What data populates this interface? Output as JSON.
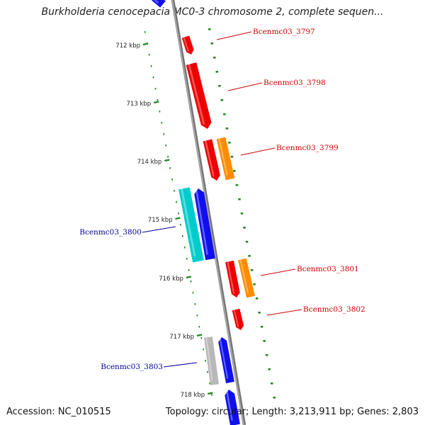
{
  "title": "Burkholderia cenocepacia MC0-3 chromosome 2, complete sequen...",
  "footer": {
    "accession": "Accession: NC_010515",
    "topology": "Topology: circular; Length: 3,213,911 bp; Genes: 2,803"
  },
  "colors": {
    "forward_gene": "#ee0000",
    "reverse_gene": "#1010ee",
    "rna_gene": "#00cccc",
    "orange_gene": "#ff8c00",
    "pseudo_gene": "#b8b8b8",
    "backbone": "#888888",
    "tick": "#228822",
    "forward_label": "#cc0000",
    "reverse_label": "#000099"
  },
  "ticks": [
    {
      "label": "712 kbp"
    },
    {
      "label": "713 kbp"
    },
    {
      "label": "714 kbp"
    },
    {
      "label": "715 kbp"
    },
    {
      "label": "716 kbp"
    },
    {
      "label": "717 kbp"
    },
    {
      "label": "718 kbp"
    }
  ],
  "gene_labels": [
    {
      "text": "Bcenmc03_3797",
      "strand": "forward"
    },
    {
      "text": "Bcenmc03_3798",
      "strand": "forward"
    },
    {
      "text": "Bcenmc03_3799",
      "strand": "forward"
    },
    {
      "text": "Bcenmc03_3800",
      "strand": "reverse"
    },
    {
      "text": "Bcenmc03_3801",
      "strand": "forward"
    },
    {
      "text": "Bcenmc03_3802",
      "strand": "forward"
    },
    {
      "text": "Bcenmc03_3803",
      "strand": "reverse"
    }
  ]
}
